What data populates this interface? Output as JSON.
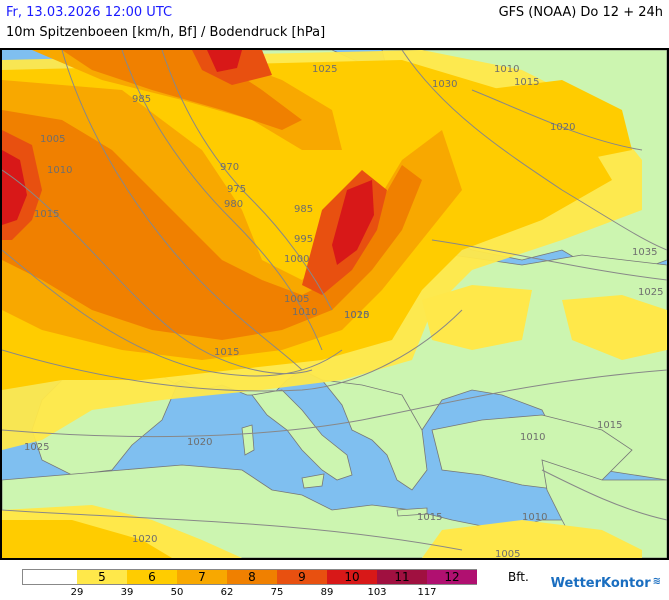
{
  "header": {
    "date": "Fr, 13.03.2026 12:00 UTC",
    "model": "GFS (NOAA) Do 12 + 24h",
    "parameter": "10m Spitzenboeen [km/h, Bf] / Bodendruck [hPa]"
  },
  "map": {
    "colors": {
      "sea": "#7fbff0",
      "land_calm": "#ccf5b0",
      "bf4": "#ffffff",
      "bf5": "#ffe84a",
      "bf6": "#ffcc00",
      "bf7": "#f8a800",
      "bf8": "#f08000",
      "bf9": "#e85010",
      "bf10": "#d81818",
      "bf11": "#a01040",
      "bf12": "#b01070"
    },
    "isobar_labels": [
      "985",
      "1005",
      "1010",
      "1015",
      "970",
      "975",
      "980",
      "985",
      "995",
      "1000",
      "1005",
      "1010",
      "1015",
      "1020",
      "1025",
      "1030",
      "1035",
      "1015",
      "1010",
      "1020",
      "1025",
      "1020",
      "1015",
      "1010",
      "1005",
      "1015",
      "1020",
      "1025",
      "1010",
      "1015"
    ]
  },
  "legend": {
    "bft_label": "Bft.",
    "categories": [
      {
        "label": "",
        "color": "#ffffff"
      },
      {
        "label": "5",
        "color": "#ffe84a"
      },
      {
        "label": "6",
        "color": "#ffcc00"
      },
      {
        "label": "7",
        "color": "#f8a800"
      },
      {
        "label": "8",
        "color": "#f08000"
      },
      {
        "label": "9",
        "color": "#e85010"
      },
      {
        "label": "10",
        "color": "#d81818"
      },
      {
        "label": "11",
        "color": "#a01040"
      },
      {
        "label": "12",
        "color": "#b01070"
      }
    ],
    "ticks": [
      "29",
      "39",
      "50",
      "62",
      "75",
      "89",
      "103",
      "117"
    ]
  },
  "brand": {
    "name": "WetterKontor",
    "icon": "wind-icon"
  }
}
